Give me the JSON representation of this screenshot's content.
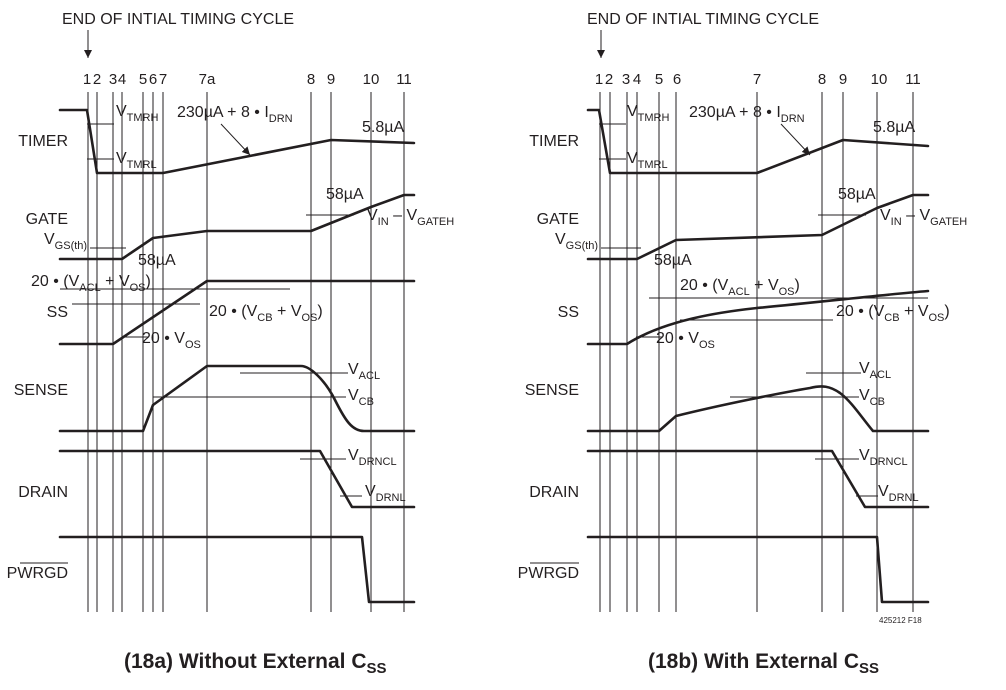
{
  "header": "END OF INTIAL TIMING CYCLE",
  "signals": [
    "TIMER",
    "GATE",
    "SS",
    "SENSE",
    "DRAIN",
    "PWRGD"
  ],
  "panels": [
    {
      "caption": {
        "main": "(18a) Without External C",
        "sub": "SS"
      },
      "ticks": [
        "1",
        "2",
        "3",
        "4",
        "5",
        "6",
        "7",
        "7a",
        "8",
        "9",
        "10",
        "11"
      ],
      "annotations": {
        "vtmrh": {
          "main": "V",
          "sub": "TMRH"
        },
        "vtmrl": {
          "main": "V",
          "sub": "TMRL"
        },
        "timer_current": {
          "main": "230µA + 8 • I",
          "sub": "DRN"
        },
        "timer_low": "5.8µA",
        "gate_58ua_upper": "58µA",
        "vin_gateh": {
          "a": "V",
          "a_sub": "IN",
          "b": " – V",
          "b_sub": "GATEH"
        },
        "vgs_th": {
          "main": "V",
          "sub": "GS(th)"
        },
        "gate_58ua_lower": "58µA",
        "ss_acl": {
          "a": "20 • (V",
          "a_sub": "ACL",
          "b": " + V",
          "b_sub": "OS",
          "c": ")"
        },
        "ss_cb": {
          "a": "20 • (V",
          "a_sub": "CB",
          "b": " + V",
          "b_sub": "OS",
          "c": ")"
        },
        "ss_os": {
          "a": "20 • V",
          "a_sub": "OS"
        },
        "vacl": {
          "main": "V",
          "sub": "ACL"
        },
        "vcb": {
          "main": "V",
          "sub": "CB"
        },
        "vdrncl": {
          "main": "V",
          "sub": "DRNCL"
        },
        "vdrnl": {
          "main": "V",
          "sub": "DRNL"
        }
      }
    },
    {
      "caption": {
        "main": "(18b) With External C",
        "sub": "SS"
      },
      "ticks": [
        "1",
        "2",
        "3",
        "4",
        "5",
        "6",
        "7",
        "8",
        "9",
        "10",
        "11"
      ],
      "note": "425212 F18",
      "annotations": {
        "vtmrh": {
          "main": "V",
          "sub": "TMRH"
        },
        "vtmrl": {
          "main": "V",
          "sub": "TMRL"
        },
        "timer_current": {
          "main": "230µA + 8 • I",
          "sub": "DRN"
        },
        "timer_low": "5.8µA",
        "gate_58ua_upper": "58µA",
        "vin_gateh": {
          "a": "V",
          "a_sub": "IN",
          "b": " – V",
          "b_sub": "GATEH"
        },
        "vgs_th": {
          "main": "V",
          "sub": "GS(th)"
        },
        "gate_58ua_lower": "58µA",
        "ss_acl": {
          "a": "20 • (V",
          "a_sub": "ACL",
          "b": " + V",
          "b_sub": "OS",
          "c": ")"
        },
        "ss_cb": {
          "a": "20 • (V",
          "a_sub": "CB",
          "b": " + V",
          "b_sub": "OS",
          "c": ")"
        },
        "ss_os": {
          "a": "20 • V",
          "a_sub": "OS"
        },
        "vacl": {
          "main": "V",
          "sub": "ACL"
        },
        "vcb": {
          "main": "V",
          "sub": "CB"
        },
        "vdrncl": {
          "main": "V",
          "sub": "DRNCL"
        },
        "vdrnl": {
          "main": "V",
          "sub": "DRNL"
        }
      }
    }
  ]
}
